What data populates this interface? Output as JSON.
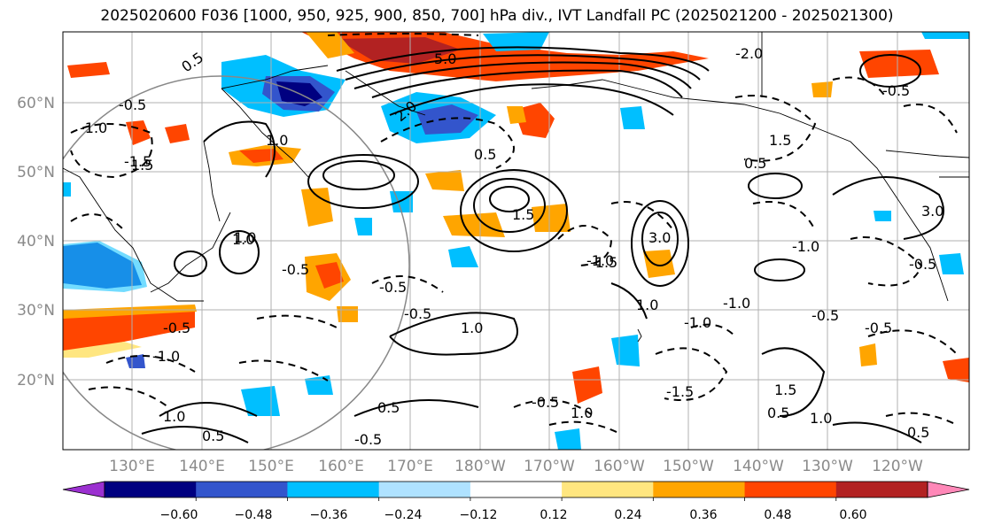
{
  "title": "2025020600 F036 [1000, 950, 925, 900, 850, 700] hPa div., IVT Landfall PC (2025021200 - 2025021300)",
  "lat_labels": [
    "60°N",
    "50°N",
    "40°N",
    "30°N",
    "20°N"
  ],
  "lon_labels": [
    "130°E",
    "140°E",
    "150°E",
    "160°E",
    "170°E",
    "180°W",
    "170°W",
    "160°W",
    "150°W",
    "140°W",
    "130°W",
    "120°W"
  ],
  "colorbar": {
    "colors": [
      "#9b30d0",
      "#000080",
      "#3355cc",
      "#00bfff",
      "#afe2ff",
      "#ffffff",
      "#ffe680",
      "#ffa500",
      "#ff4500",
      "#b22222",
      "#ff88b8"
    ],
    "tick_labels": [
      "−0.60",
      "−0.48",
      "−0.36",
      "−0.24",
      "−0.12",
      "0.12",
      "0.24",
      "0.36",
      "0.48",
      "0.60"
    ]
  },
  "contour_labels": [
    "0.5",
    "1.0",
    "1.5",
    "2.0",
    "-0.5",
    "-1.0",
    "-1.5",
    "-2.0",
    "5.0",
    "3.0",
    "1.5",
    "0.5",
    "-0.5",
    "-0.5",
    "1.0",
    "-1.0",
    "1.0",
    "-0.5",
    "0.5",
    "-0.5",
    "1.0",
    "0.5",
    "-0.5",
    "-1.0",
    "-1.5",
    "-0.5",
    "1.0",
    "-0.5",
    "0.5",
    "-0.5",
    "1.5",
    "-1.0",
    "1.0",
    "0.5",
    "1.5",
    "-1.0",
    "3.0",
    "-1.5",
    "1.0",
    "0.5",
    "-0.5",
    "-1.0",
    "1.0",
    "-0.5"
  ],
  "map_colors": {
    "grid": "#b0b0b0",
    "coast": "#000000"
  }
}
